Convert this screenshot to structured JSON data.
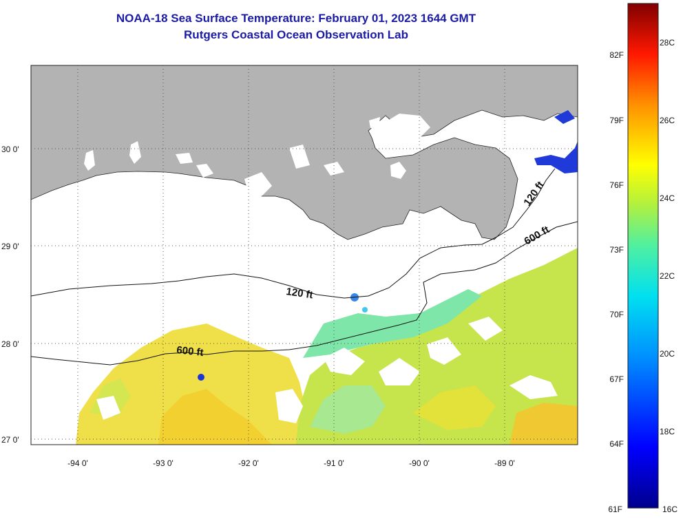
{
  "title": {
    "line1": "NOAA-18 Sea Surface Temperature:  February 01, 2023 1644 GMT",
    "line2": "Rutgers Coastal Ocean Observation Lab"
  },
  "map": {
    "lat_labels": [
      "30 0'",
      "29 0'",
      "28 0'",
      "27 0'"
    ],
    "lon_labels": [
      "-94 0'",
      "-93 0'",
      "-92 0'",
      "-91 0'",
      "-90 0'",
      "-89 0'"
    ],
    "contour_labels": [
      "120 ft",
      "600 ft",
      "120 ft",
      "600 ft"
    ]
  },
  "colorbar": {
    "fahrenheit_labels": [
      "82F",
      "79F",
      "76F",
      "73F",
      "70F",
      "67F",
      "64F",
      "61F"
    ],
    "celsius_labels": [
      "28C",
      "26C",
      "24C",
      "22C",
      "20C",
      "18C",
      "16C"
    ]
  },
  "colors": {
    "land": "#b3b3b3",
    "title_text": "#1a1aa6",
    "sst_warm": "#f2d400",
    "sst_mid": "#c8e840",
    "sst_cool": "#58e4b4"
  }
}
